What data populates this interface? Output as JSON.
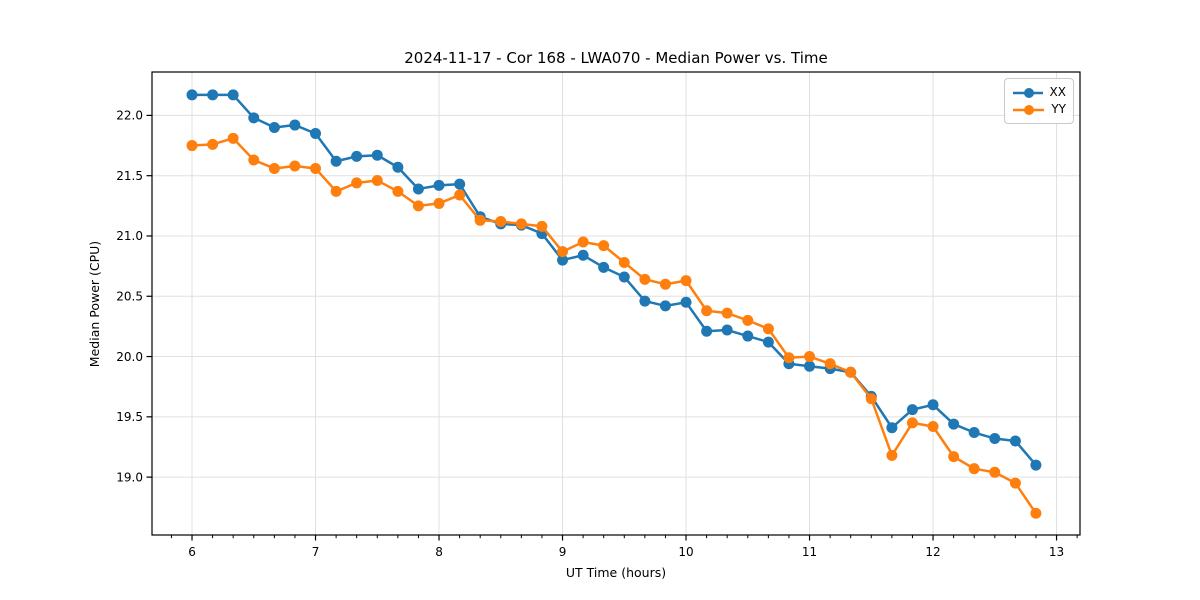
{
  "chart_data": {
    "type": "line",
    "title": "2024-11-17 - Cor 168 - LWA070 - Median Power vs. Time",
    "xlabel": "UT Time (hours)",
    "ylabel": "Median Power (CPU)",
    "xlim": [
      5.676,
      13.19
    ],
    "ylim": [
      18.52,
      22.36
    ],
    "grid": true,
    "grid_color": "#e0e0e0",
    "spine_color": "#000000",
    "background_color": "#ffffff",
    "xticks": {
      "values": [
        6,
        7,
        8,
        9,
        10,
        11,
        12,
        13
      ],
      "labels": [
        "6",
        "7",
        "8",
        "9",
        "10",
        "11",
        "12",
        "13"
      ]
    },
    "yticks": {
      "values": [
        19.0,
        19.5,
        20.0,
        20.5,
        21.0,
        21.5,
        22.0
      ],
      "labels": [
        "19.0",
        "19.5",
        "20.0",
        "20.5",
        "21.0",
        "21.5",
        "22.0"
      ]
    },
    "x_minor_tick_step": 0.166667,
    "legend": {
      "position": "upper right",
      "entries": [
        {
          "label": "XX",
          "color": "#1f77b4"
        },
        {
          "label": "YY",
          "color": "#ff7f0e"
        }
      ]
    },
    "x": [
      6.0,
      6.167,
      6.333,
      6.5,
      6.667,
      6.833,
      7.0,
      7.167,
      7.333,
      7.5,
      7.667,
      7.833,
      8.0,
      8.167,
      8.333,
      8.5,
      8.667,
      8.833,
      9.0,
      9.167,
      9.333,
      9.5,
      9.667,
      9.833,
      10.0,
      10.167,
      10.333,
      10.5,
      10.667,
      10.833,
      11.0,
      11.167,
      11.333,
      11.5,
      11.667,
      11.833,
      12.0,
      12.167,
      12.333,
      12.5,
      12.667,
      12.833
    ],
    "series": [
      {
        "name": "XX",
        "color": "#1f77b4",
        "values": [
          22.17,
          22.17,
          22.17,
          21.98,
          21.9,
          21.92,
          21.85,
          21.62,
          21.66,
          21.67,
          21.57,
          21.39,
          21.42,
          21.43,
          21.16,
          21.1,
          21.09,
          21.02,
          20.8,
          20.84,
          20.74,
          20.66,
          20.46,
          20.42,
          20.45,
          20.21,
          20.22,
          20.17,
          20.12,
          19.94,
          19.92,
          19.9,
          19.87,
          19.67,
          19.41,
          19.56,
          19.6,
          19.44,
          19.37,
          19.32,
          19.3,
          19.1
        ]
      },
      {
        "name": "YY",
        "color": "#ff7f0e",
        "values": [
          21.75,
          21.76,
          21.81,
          21.63,
          21.56,
          21.58,
          21.56,
          21.37,
          21.44,
          21.46,
          21.37,
          21.25,
          21.27,
          21.34,
          21.13,
          21.12,
          21.1,
          21.08,
          20.87,
          20.95,
          20.92,
          20.78,
          20.64,
          20.6,
          20.63,
          20.38,
          20.36,
          20.3,
          20.23,
          19.99,
          20.0,
          19.94,
          19.87,
          19.65,
          19.18,
          19.45,
          19.42,
          19.17,
          19.07,
          19.04,
          18.95,
          18.7
        ]
      }
    ],
    "marker": "circle",
    "marker_radius": 5.5,
    "line_width": 2.5
  }
}
